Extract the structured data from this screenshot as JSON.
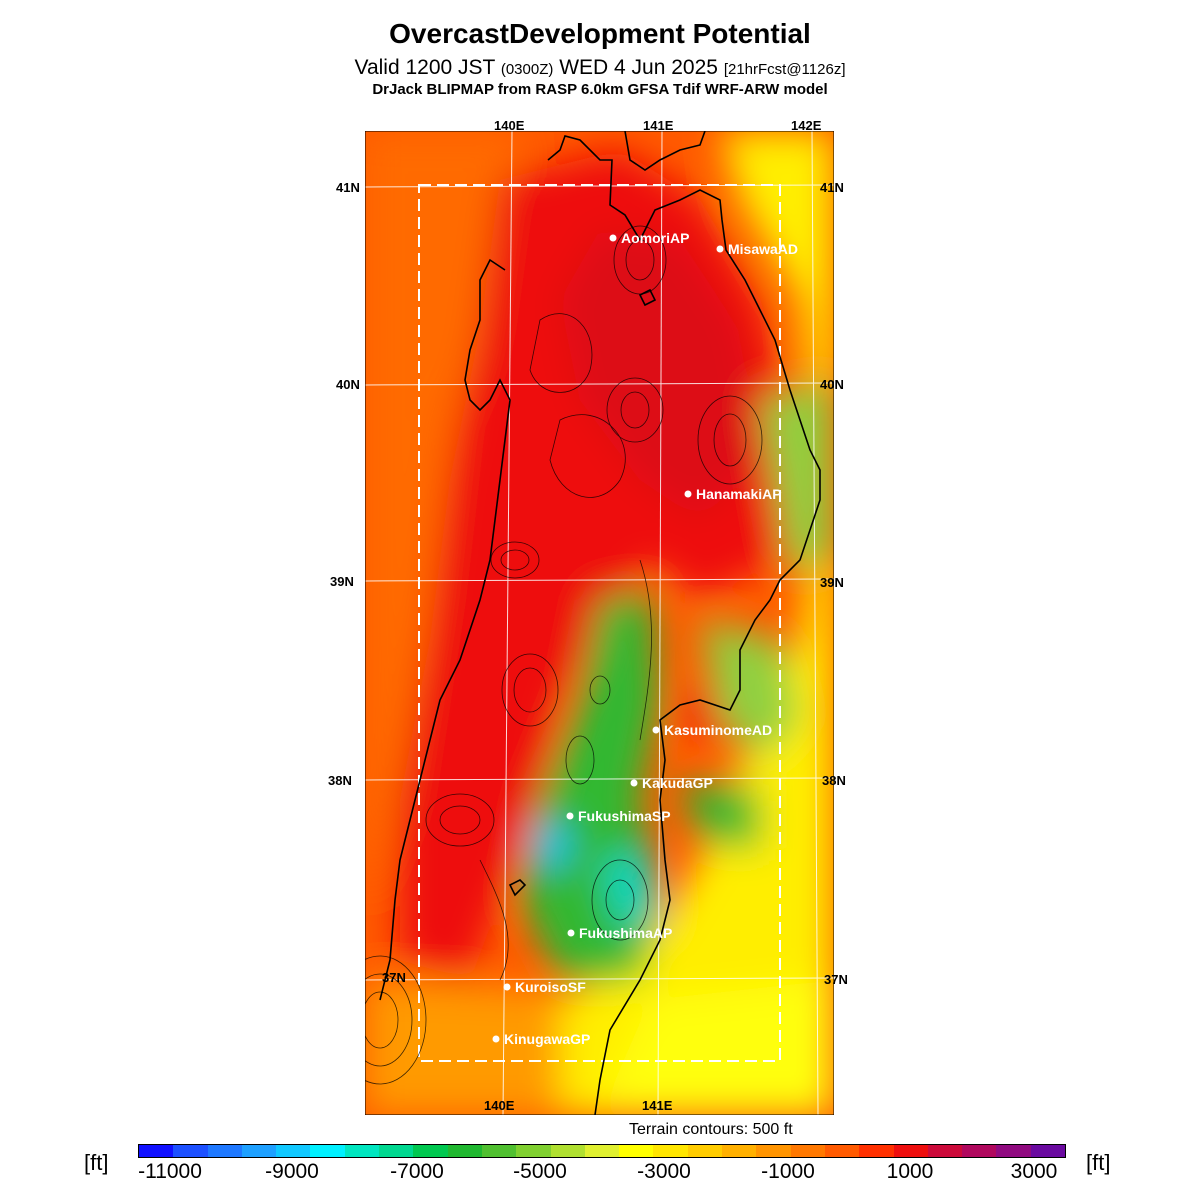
{
  "header": {
    "title": "OvercastDevelopment Potential",
    "valid_prefix": "Valid 1200 JST",
    "valid_utc": "(0300Z)",
    "valid_date": "WED 4 Jun 2025",
    "forecast": "[21hrFcst@1126z]",
    "model": "DrJack BLIPMAP from RASP 6.0km GFSA Tdif WRF-ARW model"
  },
  "grid": {
    "top_lon": [
      "140E",
      "141E",
      "142E"
    ],
    "bottom_lon": [
      "140E",
      "141E"
    ],
    "left_lat": [
      "41N",
      "40N",
      "39N",
      "38N",
      "37N"
    ],
    "right_lat": [
      "41N",
      "40N",
      "39N",
      "38N",
      "37N"
    ]
  },
  "stations": [
    "AomoriAP",
    "MisawaAD",
    "HanamakiAP",
    "KasuminomeAD",
    "KakudaGP",
    "FukushimaSP",
    "FukushimaAP",
    "KuroisoSF",
    "KinugawaGP"
  ],
  "terrain_note": "Terrain contours: 500 ft",
  "colorbar": {
    "unit_left": "[ft]",
    "unit_right": "[ft]",
    "labels": [
      "-11000",
      "-9000",
      "-7000",
      "-5000",
      "-3000",
      "-1000",
      "1000",
      "3000"
    ],
    "colors": [
      "#1010ff",
      "#1c50ff",
      "#1e78ff",
      "#1ea0ff",
      "#10c8ff",
      "#00f0ff",
      "#00e6c0",
      "#00d890",
      "#00c850",
      "#20b830",
      "#50c030",
      "#80d030",
      "#b0e030",
      "#e0f030",
      "#ffff00",
      "#ffe600",
      "#ffcc00",
      "#ffb000",
      "#ff9400",
      "#ff7800",
      "#ff5a00",
      "#ff3000",
      "#ee0e0e",
      "#cc0a3a",
      "#b0085e",
      "#900a80",
      "#6a0aa0"
    ]
  }
}
